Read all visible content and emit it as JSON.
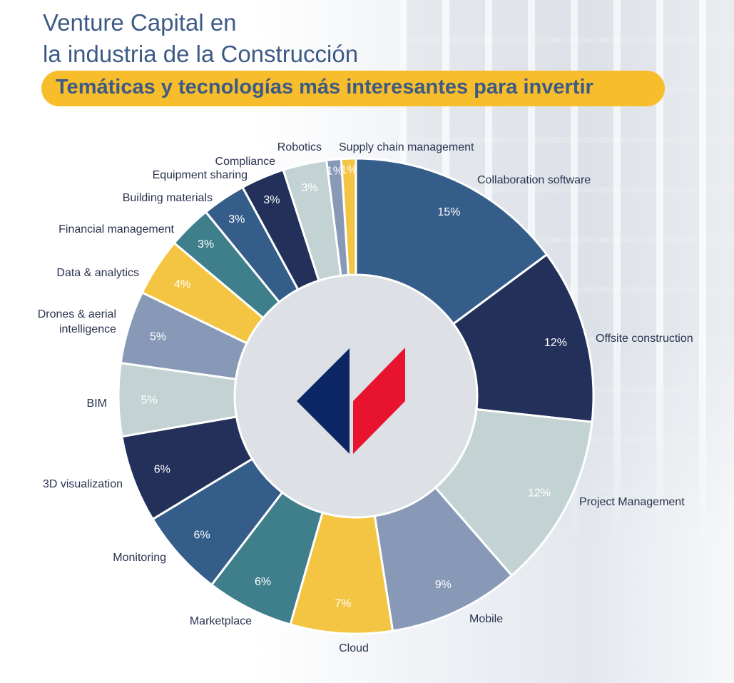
{
  "header": {
    "title_line1": "Venture Capital en",
    "title_line2": "la industria de la Construcción",
    "subtitle": "Temáticas y tecnologías más interesantes para invertir"
  },
  "chart_data": {
    "type": "pie",
    "donut": true,
    "legend": "none",
    "categories": [
      "Collaboration software",
      "Offsite construction",
      "Project Management",
      "Mobile",
      "Cloud",
      "Marketplace",
      "Monitoring",
      "3D visualization",
      "BIM",
      "Drones & aerial intelligence",
      "Data & analytics",
      "Financial management",
      "Building materials",
      "Equipment sharing",
      "Compliance",
      "Robotics",
      "Supply chain management"
    ],
    "values": [
      15,
      12,
      12,
      9,
      7,
      6,
      6,
      6,
      5,
      5,
      4,
      3,
      3,
      3,
      3,
      1,
      1
    ],
    "labels": [
      "15%",
      "12%",
      "12%",
      "9%",
      "7%",
      "6%",
      "6%",
      "6%",
      "5%",
      "5%",
      "4%",
      "3%",
      "3%",
      "3%",
      "3%",
      "1%",
      "1%"
    ],
    "colors": [
      "#355d8a",
      "#22305a",
      "#c3d3d3",
      "#8899b8",
      "#f4c542",
      "#3f7f8c",
      "#355d8a",
      "#22305a",
      "#c3d3d3",
      "#8899b8",
      "#f4c542",
      "#3f7f8c",
      "#355d8a",
      "#22305a",
      "#c3d3d3",
      "#8899b8",
      "#f4c542"
    ]
  },
  "logo": {
    "colors": [
      "#0d2766",
      "#e8132f"
    ]
  }
}
